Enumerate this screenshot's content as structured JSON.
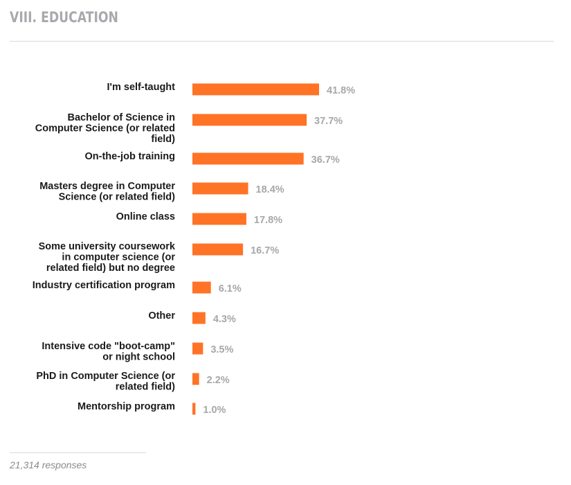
{
  "section": {
    "title": "VIII. EDUCATION"
  },
  "footer": {
    "responses": "21,314 responses"
  },
  "colors": {
    "bar": "#ff7326",
    "label": "#1a1a1a",
    "value": "#a5a7aa"
  },
  "chart_data": {
    "type": "bar",
    "orientation": "horizontal",
    "unit": "%",
    "grid": false,
    "legend": "none",
    "categories": [
      "I'm self-taught",
      "Bachelor of Science in Computer Science (or related field)",
      "On-the-job training",
      "Masters degree in Computer Science (or related field)",
      "Online class",
      "Some university coursework in computer science (or related field) but no degree",
      "Industry certification program",
      "Other",
      "Intensive code \"boot-camp\" or night school",
      "PhD in Computer Science (or related field)",
      "Mentorship program"
    ],
    "category_lines": [
      [
        "I'm self-taught"
      ],
      [
        "Bachelor of Science in",
        "Computer Science (or related",
        "field)"
      ],
      [
        "On-the-job training"
      ],
      [
        "Masters degree in Computer",
        "Science (or related field)"
      ],
      [
        "Online class"
      ],
      [
        "Some university coursework",
        "in computer science (or",
        "related field) but no degree"
      ],
      [
        "Industry certification program"
      ],
      [
        "Other"
      ],
      [
        "Intensive code \"boot-camp\"",
        "or night school"
      ],
      [
        "PhD in Computer Science (or",
        "related field)"
      ],
      [
        "Mentorship program"
      ]
    ],
    "values": [
      41.8,
      37.7,
      36.7,
      18.4,
      17.8,
      16.7,
      6.1,
      4.3,
      3.5,
      2.2,
      1.0
    ],
    "value_labels": [
      "41.8%",
      "37.7%",
      "36.7%",
      "18.4%",
      "17.8%",
      "16.7%",
      "6.1%",
      "4.3%",
      "3.5%",
      "2.2%",
      "1.0%"
    ]
  }
}
